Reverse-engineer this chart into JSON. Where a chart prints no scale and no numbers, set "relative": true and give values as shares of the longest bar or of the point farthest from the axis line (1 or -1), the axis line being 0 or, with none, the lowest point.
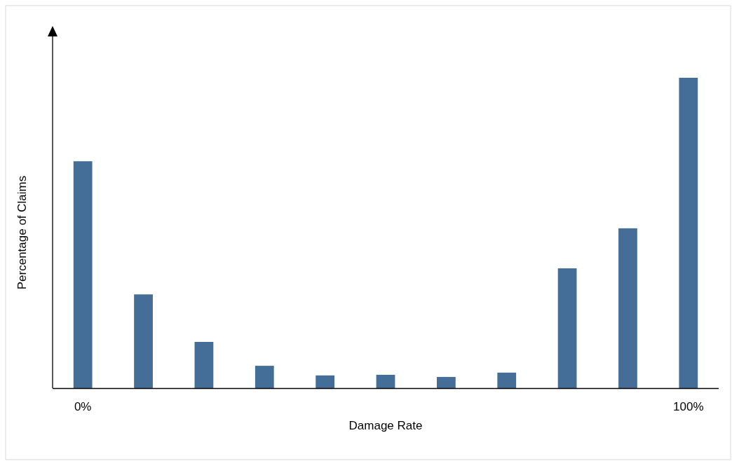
{
  "chart_data": {
    "type": "bar",
    "relative": true,
    "xlabel": "Damage Rate",
    "ylabel": "Percentage of Claims",
    "categories": [
      "0%",
      null,
      null,
      null,
      null,
      null,
      null,
      null,
      null,
      null,
      "100%"
    ],
    "values": [
      0.731,
      0.302,
      0.149,
      0.072,
      0.041,
      0.043,
      0.036,
      0.05,
      0.386,
      0.515,
      1
    ],
    "color": "#446e98"
  }
}
